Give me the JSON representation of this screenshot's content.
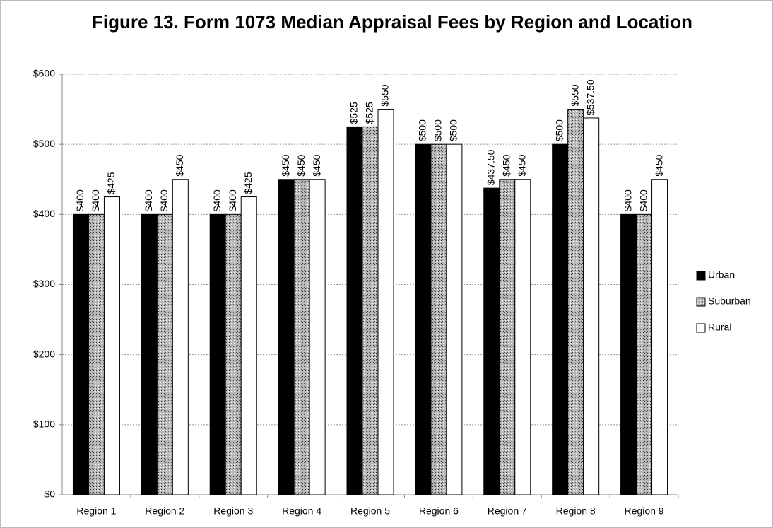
{
  "chart_data": {
    "type": "bar",
    "title": "Figure 13.  Form 1073 Median Appraisal Fees by Region and Location",
    "categories": [
      "Region 1",
      "Region 2",
      "Region 3",
      "Region 4",
      "Region 5",
      "Region 6",
      "Region 7",
      "Region 8",
      "Region 9"
    ],
    "series": [
      {
        "name": "Urban",
        "color": "#000000",
        "values": [
          400,
          400,
          400,
          450,
          525,
          500,
          437.5,
          500,
          400
        ],
        "value_labels": [
          "$400",
          "$400",
          "$400",
          "$450",
          "$525",
          "$500",
          "$437.50",
          "$500",
          "$400"
        ]
      },
      {
        "name": "Suburban",
        "color": "#9a9a9a",
        "values": [
          400,
          400,
          400,
          450,
          525,
          500,
          450,
          550,
          400
        ],
        "value_labels": [
          "$400",
          "$400",
          "$400",
          "$450",
          "$525",
          "$500",
          "$450",
          "$550",
          "$400"
        ]
      },
      {
        "name": "Rural",
        "color": "#ffffff",
        "values": [
          425,
          450,
          425,
          450,
          550,
          500,
          450,
          537.5,
          450
        ],
        "value_labels": [
          "$425",
          "$450",
          "$425",
          "$450",
          "$550",
          "$500",
          "$450",
          "$537.50",
          "$450"
        ]
      }
    ],
    "ylim": [
      0,
      600
    ],
    "yticks": [
      {
        "value": 0,
        "label": "$0"
      },
      {
        "value": 100,
        "label": "$100"
      },
      {
        "value": 200,
        "label": "$200"
      },
      {
        "value": 300,
        "label": "$300"
      },
      {
        "value": 400,
        "label": "$400"
      },
      {
        "value": 500,
        "label": "$500"
      },
      {
        "value": 600,
        "label": "$600"
      }
    ],
    "grid": true,
    "legend": "right"
  }
}
